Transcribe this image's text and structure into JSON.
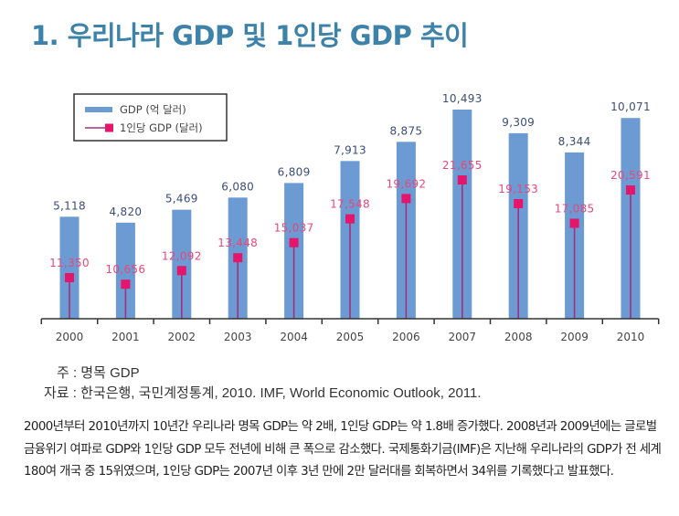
{
  "title": "1. 우리나라 GDP 및 1인당 GDP 추이",
  "colors": {
    "title": "#3d82a8",
    "bar": "#6b9bd2",
    "bar_label": "#3b4d78",
    "marker": "#e5156b",
    "marker_line": "#a3307d",
    "marker_label": "#e8477a",
    "axis": "#333333"
  },
  "chart_data": {
    "type": "bar",
    "title": "1. 우리나라 GDP 및 1인당 GDP 추이",
    "xlabel": "",
    "ylabel": "",
    "categories": [
      "2000",
      "2001",
      "2002",
      "2003",
      "2004",
      "2005",
      "2006",
      "2007",
      "2008",
      "2009",
      "2010"
    ],
    "series": [
      {
        "name": "GDP (억 달러)",
        "type": "bar",
        "values": [
          5118,
          4820,
          5469,
          6080,
          6809,
          7913,
          8875,
          10493,
          9309,
          8344,
          10071
        ],
        "labels": [
          "5,118",
          "4,820",
          "5,469",
          "6,080",
          "6,809",
          "7,913",
          "8,875",
          "10,493",
          "9,309",
          "8,344",
          "10,071"
        ]
      },
      {
        "name": "1인당 GDP (달러)",
        "type": "lollipop",
        "values": [
          11350,
          10656,
          12092,
          13448,
          15037,
          17548,
          19692,
          21655,
          19153,
          17085,
          20591
        ],
        "labels": [
          "11,350",
          "10,656",
          "12,092",
          "13,448",
          "15,037",
          "17,548",
          "19,692",
          "21,655",
          "19,153",
          "17,085",
          "20,591"
        ]
      }
    ],
    "ylim": [
      0,
      10600
    ],
    "y2lim": [
      6900,
      23000
    ],
    "grid": false,
    "legend": {
      "position": "top-left",
      "entries": [
        "GDP (억 달러)",
        "1인당 GDP (달러)"
      ]
    }
  },
  "notes": {
    "note": "주 : 명목 GDP",
    "source": "자료 : 한국은행, 국민계정통계, 2010. IMF, World Economic Outlook, 2011."
  },
  "paragraph": "2000년부터 2010년까지 10년간 우리나라 명목 GDP는 약 2배, 1인당 GDP는 약 1.8배 증가했다. 2008년과 2009년에는 글로벌 금융위기 여파로 GDP와 1인당 GDP 모두 전년에 비해 큰 폭으로 감소했다. 국제통화기금(IMF)은 지난해 우리나라의 GDP가 전 세계 180여 개국 중 15위였으며, 1인당 GDP는 2007년 이후 3년 만에 2만 달러대를 회복하면서 34위를 기록했다고 발표했다."
}
